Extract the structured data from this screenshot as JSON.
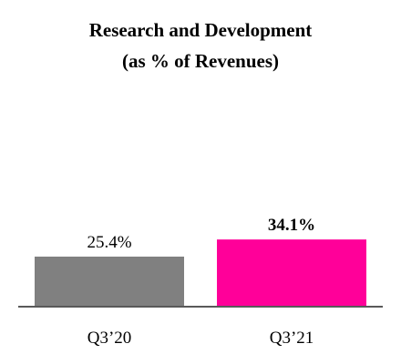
{
  "chart_data": {
    "type": "bar",
    "title": [
      "Research and Development",
      "(as % of Revenues)"
    ],
    "categories": [
      "Q3’20",
      "Q3’21"
    ],
    "values": [
      25.4,
      34.1
    ],
    "data_labels": [
      "25.4%",
      "34.1%"
    ],
    "data_label_bold": [
      false,
      true
    ],
    "colors": [
      "#808080",
      "#FF0099"
    ],
    "axis_color": "#595959",
    "xlabel": "",
    "ylabel": "",
    "grid": false,
    "legend": "none"
  }
}
